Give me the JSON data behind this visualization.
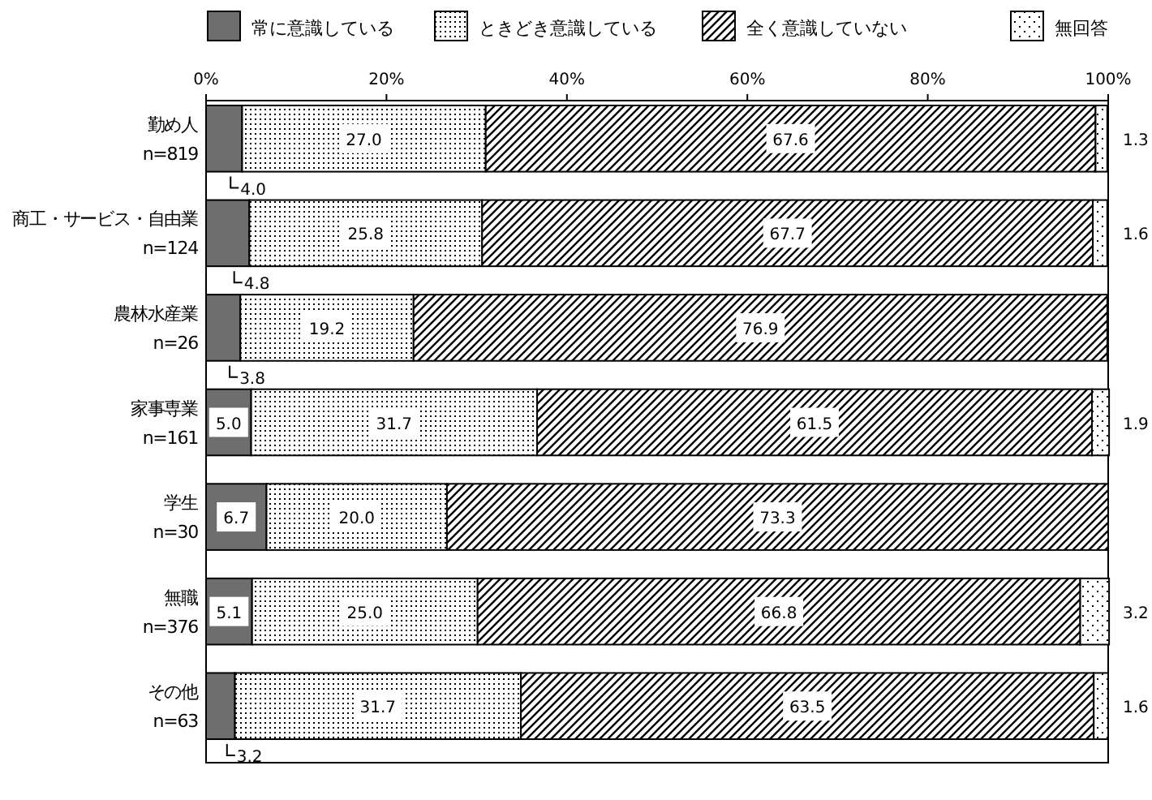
{
  "chart_data": {
    "type": "bar",
    "orientation": "horizontal",
    "stacked": true,
    "categories": [
      "勤め人\nn=819",
      "商工・サービス・自由業\nn=124",
      "農林水産業\nn=26",
      "家事専業\nn=161",
      "学生\nn=30",
      "無職\nn=376",
      "その他\nn=63"
    ],
    "series": [
      {
        "name": "常に意識している",
        "color": "#6e6e6e",
        "values": [
          4.0,
          4.8,
          3.8,
          5.0,
          6.7,
          5.1,
          3.2
        ],
        "value_labels": [
          "4.0",
          "4.8",
          "3.8",
          "5.0",
          "6.7",
          "5.1",
          "3.2"
        ]
      },
      {
        "name": "ときどき意識している",
        "color": "#000000",
        "values": [
          27.0,
          25.8,
          19.2,
          31.7,
          20.0,
          25.0,
          31.7
        ],
        "value_labels": [
          "27.0",
          "25.8",
          "19.2",
          "31.7",
          "20.0",
          "25.0",
          "31.7"
        ]
      },
      {
        "name": "全く意識していない",
        "color": "#000000",
        "values": [
          67.6,
          67.7,
          76.9,
          61.5,
          73.3,
          66.8,
          63.5
        ],
        "value_labels": [
          "67.6",
          "67.7",
          "76.9",
          "61.5",
          "73.3",
          "66.8",
          "63.5"
        ]
      },
      {
        "name": "無回答",
        "color": "#000000",
        "values": [
          1.3,
          1.6,
          null,
          1.9,
          null,
          3.2,
          1.6
        ],
        "value_labels": [
          "1.3",
          "1.6",
          null,
          "1.9",
          null,
          "3.2",
          "1.6"
        ]
      }
    ],
    "xlim": [
      0,
      100
    ],
    "xticks": [
      {
        "value": 0,
        "label": "0%"
      },
      {
        "value": 20,
        "label": "20%"
      },
      {
        "value": 40,
        "label": "40%"
      },
      {
        "value": 60,
        "label": "60%"
      },
      {
        "value": 80,
        "label": "80%"
      },
      {
        "value": 100,
        "label": "100%"
      }
    ],
    "legend": "top",
    "grid": false
  }
}
